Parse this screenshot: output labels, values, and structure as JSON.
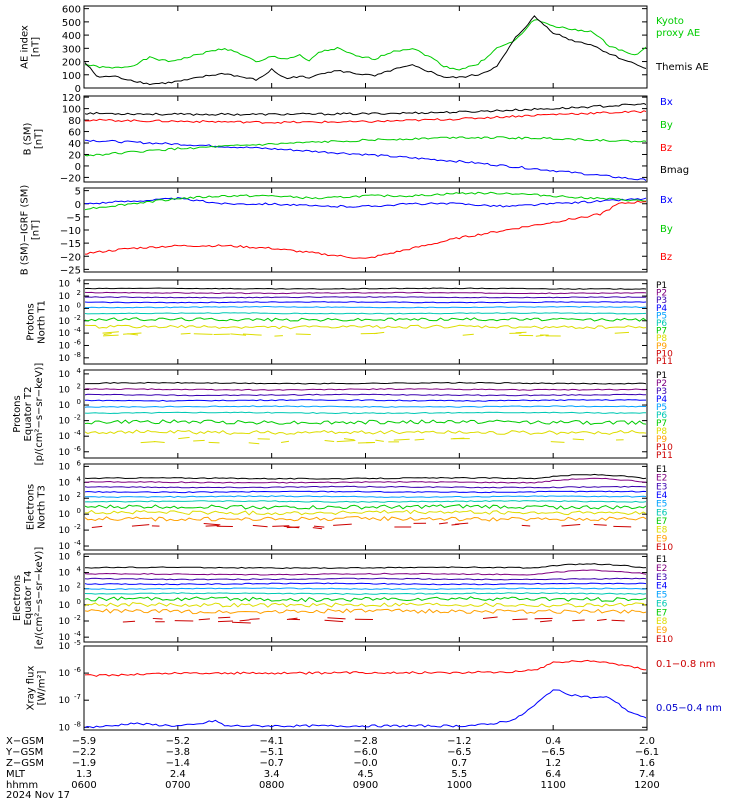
{
  "chart_data": [
    {
      "type": "line",
      "ylabel": "AE index [nT]",
      "yticks": [
        "0",
        "100",
        "200",
        "300",
        "400",
        "500",
        "600"
      ],
      "ylim": [
        0,
        620
      ],
      "yscale": "linear",
      "series": [
        {
          "name": "Kyoto proxy AE",
          "color": "#00cc00",
          "x": [
            0,
            0.15,
            0.3,
            0.5,
            0.7,
            0.9,
            1.1,
            1.3,
            1.5,
            1.7,
            1.85,
            2,
            2.15,
            2.3,
            2.4,
            2.5,
            2.7,
            2.9,
            3.1,
            3.3,
            3.5,
            3.7,
            3.85,
            4,
            4.2,
            4.4,
            4.6,
            4.8,
            5,
            5.2,
            5.4,
            5.6,
            5.7,
            5.8,
            5.9,
            6
          ],
          "y": [
            180,
            160,
            150,
            165,
            230,
            200,
            230,
            270,
            300,
            250,
            190,
            240,
            220,
            245,
            200,
            270,
            300,
            240,
            220,
            280,
            300,
            230,
            160,
            140,
            180,
            300,
            360,
            520,
            470,
            440,
            430,
            320,
            290,
            270,
            250,
            320
          ]
        },
        {
          "name": "Themis AE",
          "color": "#000000",
          "x": [
            0,
            0.15,
            0.3,
            0.5,
            0.7,
            0.9,
            1.1,
            1.3,
            1.5,
            1.7,
            1.85,
            2,
            2.15,
            2.3,
            2.4,
            2.5,
            2.7,
            2.9,
            3.1,
            3.3,
            3.5,
            3.7,
            3.85,
            4,
            4.2,
            4.4,
            4.6,
            4.8,
            5,
            5.2,
            5.4,
            5.6,
            5.7,
            5.8,
            5.9,
            6
          ],
          "y": [
            200,
            80,
            90,
            60,
            30,
            40,
            60,
            90,
            110,
            80,
            60,
            140,
            70,
            90,
            70,
            110,
            130,
            110,
            90,
            140,
            170,
            120,
            80,
            80,
            100,
            160,
            380,
            540,
            420,
            360,
            330,
            260,
            230,
            200,
            180,
            140
          ]
        }
      ],
      "legend": [
        "Kyoto proxy AE",
        "Themis AE"
      ]
    },
    {
      "type": "line",
      "ylabel": "B (SM) [nT]",
      "yticks": [
        "−20",
        "0",
        "20",
        "40",
        "60",
        "80",
        "100",
        "120"
      ],
      "ylim": [
        -28,
        122
      ],
      "yscale": "linear",
      "series": [
        {
          "name": "Bx",
          "color": "#0000ff",
          "x": [
            0,
            1,
            2,
            3,
            4,
            5,
            6
          ],
          "y": [
            45,
            38,
            30,
            20,
            8,
            -8,
            -25
          ]
        },
        {
          "name": "By",
          "color": "#00cc00",
          "x": [
            0,
            1,
            2,
            3,
            4,
            5,
            6
          ],
          "y": [
            18,
            30,
            38,
            45,
            50,
            48,
            42
          ]
        },
        {
          "name": "Bz",
          "color": "#ff0000",
          "x": [
            0,
            1,
            2,
            3,
            4,
            5,
            6
          ],
          "y": [
            80,
            78,
            76,
            77,
            82,
            90,
            95
          ]
        },
        {
          "name": "Bmag",
          "color": "#000000",
          "x": [
            0,
            1,
            2,
            3,
            4,
            5,
            6
          ],
          "y": [
            92,
            90,
            90,
            91,
            94,
            100,
            108
          ]
        }
      ],
      "legend": [
        "Bx",
        "By",
        "Bz",
        "Bmag"
      ]
    },
    {
      "type": "line",
      "ylabel": "B (SM)−IGRF (SM) [nT]",
      "yticks": [
        "−25",
        "−20",
        "−15",
        "−10",
        "−5",
        "0",
        "5"
      ],
      "ylim": [
        -26,
        6
      ],
      "yscale": "linear",
      "series": [
        {
          "name": "Bx",
          "color": "#0000ff",
          "x": [
            0,
            0.5,
            1,
            1.5,
            2,
            2.5,
            3,
            3.5,
            4,
            4.5,
            5,
            5.5,
            6
          ],
          "y": [
            0,
            1,
            2,
            0,
            0,
            -1,
            -1,
            0,
            0,
            -1,
            0,
            1,
            2
          ]
        },
        {
          "name": "By",
          "color": "#00cc00",
          "x": [
            0,
            0.5,
            1,
            1.5,
            2,
            2.5,
            3,
            3.5,
            4,
            4.5,
            5,
            5.5,
            6
          ],
          "y": [
            -2,
            0,
            2,
            3,
            3,
            2,
            3,
            3,
            4,
            4,
            3,
            2,
            1
          ]
        },
        {
          "name": "Bz",
          "color": "#ff0000",
          "x": [
            0,
            0.5,
            1,
            1.5,
            2,
            2.5,
            3,
            3.5,
            4,
            4.5,
            5,
            5.5,
            5.7,
            6
          ],
          "y": [
            -19,
            -17,
            -16,
            -16,
            -17,
            -19,
            -21,
            -17,
            -13,
            -10,
            -7,
            -4,
            0,
            1
          ]
        }
      ],
      "legend": [
        "Bx",
        "By",
        "Bz"
      ]
    },
    {
      "type": "line",
      "ylabel": "Protons North T1",
      "yscale": "log",
      "yticks_exp": [
        4,
        2,
        0,
        -2,
        -4,
        -6,
        -8
      ],
      "ylim_exp": [
        -9,
        4.6
      ],
      "series": [
        {
          "name": "P1",
          "color": "#000000",
          "y": 3.2
        },
        {
          "name": "P2",
          "color": "#800080",
          "y": 2.5
        },
        {
          "name": "P3",
          "color": "#3a00b0",
          "y": 1.8
        },
        {
          "name": "P4",
          "color": "#0000ff",
          "y": 1.0
        },
        {
          "name": "P5",
          "color": "#00a0ff",
          "y": 0.2
        },
        {
          "name": "P6",
          "color": "#00c8b4",
          "y": -0.8
        },
        {
          "name": "P7",
          "color": "#00cc00",
          "y": -1.8
        },
        {
          "name": "P8",
          "color": "#dddd00",
          "y": -3.0
        }
      ],
      "legend": [
        "P1",
        "P2",
        "P3",
        "P4",
        "P5",
        "P6",
        "P7",
        "P8",
        "P9",
        "P10",
        "P11"
      ]
    },
    {
      "type": "line",
      "ylabel": "Protons Equator T2 [p/(cm²-s-sr-keV)]",
      "yscale": "log",
      "yticks_exp": [
        4,
        2,
        0,
        -2,
        -4,
        -6
      ],
      "ylim_exp": [
        -6.8,
        4.5
      ],
      "series": [
        {
          "name": "P1",
          "color": "#000000",
          "y": 2.8
        },
        {
          "name": "P2",
          "color": "#800080",
          "y": 2.0
        },
        {
          "name": "P3",
          "color": "#3a00b0",
          "y": 1.3
        },
        {
          "name": "P4",
          "color": "#0000ff",
          "y": 0.6
        },
        {
          "name": "P5",
          "color": "#00a0ff",
          "y": -0.2
        },
        {
          "name": "P6",
          "color": "#00c8b4",
          "y": -1.0
        },
        {
          "name": "P7",
          "color": "#00cc00",
          "y": -2.2
        },
        {
          "name": "P8",
          "color": "#dddd00",
          "y": -3.5
        }
      ],
      "legend": [
        "P1",
        "P2",
        "P3",
        "P4",
        "P5",
        "P6",
        "P7",
        "P8",
        "P9",
        "P10",
        "P11"
      ]
    },
    {
      "type": "line",
      "ylabel": "Electrons North T3",
      "yscale": "log",
      "yticks_exp": [
        6,
        4,
        2,
        0,
        -2,
        -4
      ],
      "ylim_exp": [
        -4.5,
        6.3
      ],
      "series": [
        {
          "name": "E1",
          "color": "#000000",
          "y": 4.5
        },
        {
          "name": "E2",
          "color": "#800080",
          "y": 4.0
        },
        {
          "name": "E3",
          "color": "#3a00b0",
          "y": 3.4
        },
        {
          "name": "E4",
          "color": "#0000ff",
          "y": 2.8
        },
        {
          "name": "E5",
          "color": "#00a0ff",
          "y": 2.2
        },
        {
          "name": "E6",
          "color": "#00c8b4",
          "y": 1.6
        },
        {
          "name": "E7",
          "color": "#00cc00",
          "y": 0.9
        },
        {
          "name": "E8",
          "color": "#dddd00",
          "y": 0.2
        },
        {
          "name": "E9",
          "color": "#ffa000",
          "y": -0.6
        }
      ],
      "legend": [
        "E1",
        "E2",
        "E3",
        "E4",
        "E5",
        "E6",
        "E7",
        "E8",
        "E9",
        "E10"
      ]
    },
    {
      "type": "line",
      "ylabel": "Electrons Equator T4 [e/(cm²-s-sr-keV)]",
      "yscale": "log",
      "yticks_exp": [
        6,
        4,
        2,
        0,
        -2,
        -4
      ],
      "ylim_exp": [
        -4.6,
        6.3
      ],
      "series": [
        {
          "name": "E1",
          "color": "#000000",
          "y": 4.6
        },
        {
          "name": "E2",
          "color": "#800080",
          "y": 3.8
        },
        {
          "name": "E3",
          "color": "#3a00b0",
          "y": 3.2
        },
        {
          "name": "E4",
          "color": "#0000ff",
          "y": 2.6
        },
        {
          "name": "E5",
          "color": "#00a0ff",
          "y": 2.0
        },
        {
          "name": "E6",
          "color": "#00c8b4",
          "y": 1.4
        },
        {
          "name": "E7",
          "color": "#00cc00",
          "y": 0.7
        },
        {
          "name": "E8",
          "color": "#dddd00",
          "y": 0.0
        },
        {
          "name": "E9",
          "color": "#ffa000",
          "y": -0.8
        }
      ],
      "legend": [
        "E1",
        "E2",
        "E3",
        "E4",
        "E5",
        "E6",
        "E7",
        "E8",
        "E9",
        "E10"
      ]
    },
    {
      "type": "line",
      "ylabel": "Xray flux [W/m²]",
      "yscale": "log",
      "yticks_exp": [
        -5,
        -6,
        -7,
        -8
      ],
      "ylim_exp": [
        -8.1,
        -5.0
      ],
      "series": [
        {
          "name": "0.1−0.8 nm",
          "color": "#ff0000",
          "x": [
            0,
            0.5,
            1,
            1.5,
            2,
            2.5,
            3,
            3.5,
            4,
            4.5,
            4.8,
            5,
            5.3,
            5.6,
            5.8,
            6
          ],
          "y": [
            -6.1,
            -6.05,
            -6.0,
            -6.0,
            -6.0,
            -6.0,
            -5.98,
            -5.98,
            -5.98,
            -5.95,
            -5.9,
            -5.6,
            -5.55,
            -5.6,
            -5.75,
            -5.85
          ]
        },
        {
          "name": "0.05−0.4 nm",
          "color": "#0000ff",
          "x": [
            0,
            0.3,
            0.5,
            0.7,
            1,
            1.2,
            1.4,
            1.5,
            1.6,
            1.8,
            2,
            2.5,
            3,
            3.5,
            4,
            4.3,
            4.6,
            4.8,
            5,
            5.2,
            5.4,
            5.6,
            5.8,
            6
          ],
          "y": [
            -8.0,
            -7.95,
            -7.85,
            -7.9,
            -7.95,
            -7.9,
            -7.75,
            -7.95,
            -7.95,
            -7.95,
            -7.95,
            -7.95,
            -7.95,
            -7.95,
            -7.95,
            -7.9,
            -7.7,
            -7.2,
            -6.6,
            -6.8,
            -6.9,
            -6.9,
            -7.4,
            -7.7
          ]
        }
      ],
      "legend": [
        "0.1−0.8 nm",
        "0.05−0.4 nm"
      ]
    }
  ],
  "legend_labels": {
    "ae_kyoto_1": "Kyoto",
    "ae_kyoto_2": "proxy AE",
    "ae_themis": "Themis AE",
    "p1_b": "B (SM)",
    "p1_b_unit": "[nT]",
    "p0_ae": "AE index",
    "p0_ae_unit": "[nT]",
    "p2_b": "B (SM)−IGRF (SM)",
    "p2_b_unit": "[nT]",
    "p3_l1": "Protons",
    "p3_l2": "North T1",
    "p4_l1": "Protons",
    "p4_l2": "Equator T2",
    "p4_l3": "[p/(cm²−s−sr−keV)]",
    "p5_l1": "Electrons",
    "p5_l2": "North T3",
    "p6_l1": "Electrons",
    "p6_l2": "Equator T4",
    "p6_l3": "[e/(cm²−s−sr−keV)]",
    "p7_l1": "Xray flux",
    "p7_l2": "[W/m²]"
  },
  "xaxis": {
    "rows": [
      {
        "label": "X−GSM",
        "values": [
          "−5.9",
          "−5.2",
          "−4.1",
          "−2.8",
          "−1.2",
          "0.4",
          "2.0"
        ]
      },
      {
        "label": "Y−GSM",
        "values": [
          "−2.2",
          "−3.8",
          "−5.1",
          "−6.0",
          "−6.5",
          "−6.5",
          "−6.1"
        ]
      },
      {
        "label": "Z−GSM",
        "values": [
          "−1.9",
          "−1.4",
          "−0.7",
          "−0.0",
          "0.7",
          "1.2",
          "1.6"
        ]
      },
      {
        "label": "MLT",
        "values": [
          "1.3",
          "2.4",
          "3.4",
          "4.5",
          "5.5",
          "6.4",
          "7.4"
        ]
      },
      {
        "label": "hhmm",
        "values": [
          "0600",
          "0700",
          "0800",
          "0900",
          "1000",
          "1100",
          "1200"
        ]
      }
    ],
    "date": "2024 Nov 17"
  }
}
